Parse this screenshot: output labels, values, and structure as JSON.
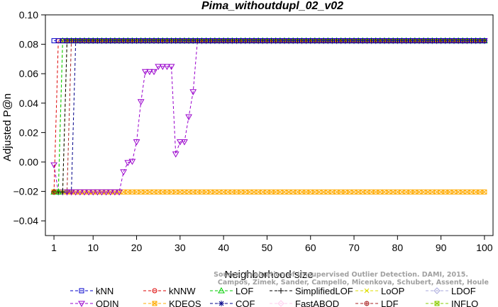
{
  "chart_data": {
    "type": "line",
    "title": "Pima_withoutdupl_02_v02",
    "xlabel": "Neighborhood size",
    "ylabel": "Adjusted P@n",
    "xlim": [
      1,
      100
    ],
    "ylim": [
      -0.05,
      0.1
    ],
    "x_ticks": [
      1,
      10,
      20,
      30,
      40,
      50,
      60,
      70,
      80,
      90,
      100
    ],
    "y_ticks": [
      -0.04,
      -0.02,
      0.0,
      0.02,
      0.04,
      0.06,
      0.08,
      0.1
    ],
    "y_tick_labels": [
      "−0.04",
      "−0.02",
      "0.00",
      "0.02",
      "0.04",
      "0.06",
      "0.08",
      "0.10"
    ],
    "series": [
      {
        "name": "kNN",
        "color": "#0000cc",
        "marker": "square",
        "x_range": [
          1,
          100
        ],
        "steps": [
          [
            1,
            0.0824
          ]
        ]
      },
      {
        "name": "kNNW",
        "color": "#dd0000",
        "marker": "circle",
        "x_range": [
          1,
          100
        ],
        "steps": [
          [
            1,
            -0.0204
          ],
          [
            2,
            0.0824
          ]
        ]
      },
      {
        "name": "LOF",
        "color": "#00cc00",
        "marker": "triangle-up",
        "x_range": [
          1,
          100
        ],
        "steps": [
          [
            1,
            -0.0204
          ],
          [
            3,
            0.0824
          ]
        ]
      },
      {
        "name": "SimplifiedLOF",
        "color": "#000000",
        "marker": "plus",
        "x_range": [
          1,
          100
        ],
        "steps": [
          [
            1,
            -0.0204
          ],
          [
            4,
            0.0824
          ]
        ]
      },
      {
        "name": "LoOP",
        "color": "#dddd00",
        "marker": "x",
        "x_range": [
          1,
          100
        ],
        "steps": [
          [
            1,
            -0.0204
          ],
          [
            4,
            0.0824
          ]
        ]
      },
      {
        "name": "LDOF",
        "color": "#aaaadd",
        "marker": "diamond",
        "x_range": [
          2,
          100
        ],
        "steps": [
          [
            2,
            -0.0204
          ],
          [
            4,
            0.0824
          ]
        ]
      },
      {
        "name": "ODIN",
        "color": "#9900cc",
        "marker": "triangle-down",
        "x_range": [
          1,
          100
        ],
        "steps": [
          [
            1,
            -0.002
          ],
          [
            2,
            -0.0204
          ],
          [
            17,
            -0.0067
          ],
          [
            18,
            -0.0004
          ],
          [
            19,
            0.0004
          ],
          [
            20,
            0.0137
          ],
          [
            21,
            0.041
          ],
          [
            22,
            0.0614
          ],
          [
            23,
            0.0614
          ],
          [
            24,
            0.0614
          ],
          [
            25,
            0.0649
          ],
          [
            26,
            0.0649
          ],
          [
            27,
            0.0649
          ],
          [
            28,
            0.0649
          ],
          [
            29,
            0.0054
          ],
          [
            30,
            0.0137
          ],
          [
            31,
            0.0137
          ],
          [
            32,
            0.0307
          ],
          [
            33,
            0.0477
          ],
          [
            34,
            0.0824
          ]
        ]
      },
      {
        "name": "KDEOS",
        "color": "#ffaa00",
        "marker": "square-x",
        "x_range": [
          1,
          100
        ],
        "steps": [
          [
            1,
            -0.0204
          ]
        ]
      },
      {
        "name": "COF",
        "color": "#000088",
        "marker": "star",
        "x_range": [
          1,
          100
        ],
        "steps": [
          [
            1,
            -0.0204
          ],
          [
            6,
            0.0824
          ]
        ]
      },
      {
        "name": "FastABOD",
        "color": "#ffccee",
        "marker": "diamond",
        "x_range": [
          3,
          100
        ],
        "steps": [
          [
            3,
            0.0824
          ]
        ]
      },
      {
        "name": "LDF",
        "color": "#aa2222",
        "marker": "circle-plus",
        "x_range": [
          1,
          100
        ],
        "steps": [
          [
            1,
            -0.0204
          ],
          [
            5,
            0.0824
          ]
        ]
      },
      {
        "name": "INFLO",
        "color": "#88cc00",
        "marker": "square-x",
        "x_range": [
          1,
          100
        ],
        "steps": [
          [
            1,
            -0.0204
          ],
          [
            3,
            0.0824
          ]
        ]
      }
    ],
    "legend_placement": "bottom",
    "grid": false
  },
  "watermark": {
    "line1": "Source: Evaluation of Unsupervised Outlier Detection. DAMI, 2015.",
    "line2": "Campos, Zimek, Sander, Campello, Micenkova, Schubert, Assent, Houle"
  }
}
